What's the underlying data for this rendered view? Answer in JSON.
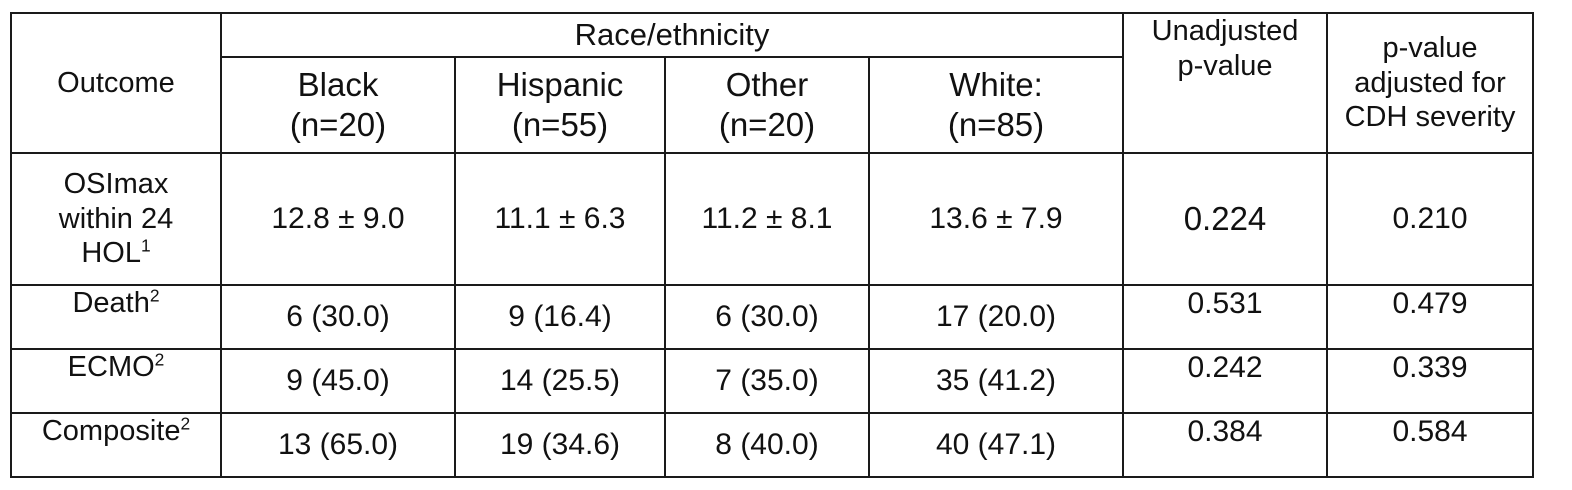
{
  "header": {
    "outcome": "Outcome",
    "group": "Race/ethnicity",
    "columns": [
      {
        "name": "Black",
        "n": "(n=20)"
      },
      {
        "name": "Hispanic",
        "n": "(n=55)"
      },
      {
        "name": "Other",
        "n": "(n=20)"
      },
      {
        "name": "White:",
        "n": "(n=85)"
      }
    ],
    "unadjusted": [
      "Unadjusted",
      "p-value"
    ],
    "adjusted": [
      "p-value",
      "adjusted for",
      "CDH severity"
    ]
  },
  "rows": [
    {
      "outcome_lines": [
        "OSImax",
        "within 24",
        "HOL"
      ],
      "sup": "1",
      "values": [
        "12.8 ± 9.0",
        "11.1 ± 6.3",
        "11.2 ± 8.1",
        "13.6 ± 7.9"
      ],
      "p_unadj": "0.224",
      "p_adj": "0.210"
    },
    {
      "outcome": "Death",
      "sup": "2",
      "values": [
        "6 (30.0)",
        "9 (16.4)",
        "6 (30.0)",
        "17 (20.0)"
      ],
      "p_unadj": "0.531",
      "p_adj": "0.479"
    },
    {
      "outcome": "ECMO",
      "sup": "2",
      "values": [
        "9 (45.0)",
        "14 (25.5)",
        "7 (35.0)",
        "35 (41.2)"
      ],
      "p_unadj": "0.242",
      "p_adj": "0.339"
    },
    {
      "outcome": "Composite",
      "sup": "2",
      "values": [
        "13 (65.0)",
        "19 (34.6)",
        "8 (40.0)",
        "40 (47.1)"
      ],
      "p_unadj": "0.384",
      "p_adj": "0.584"
    }
  ]
}
